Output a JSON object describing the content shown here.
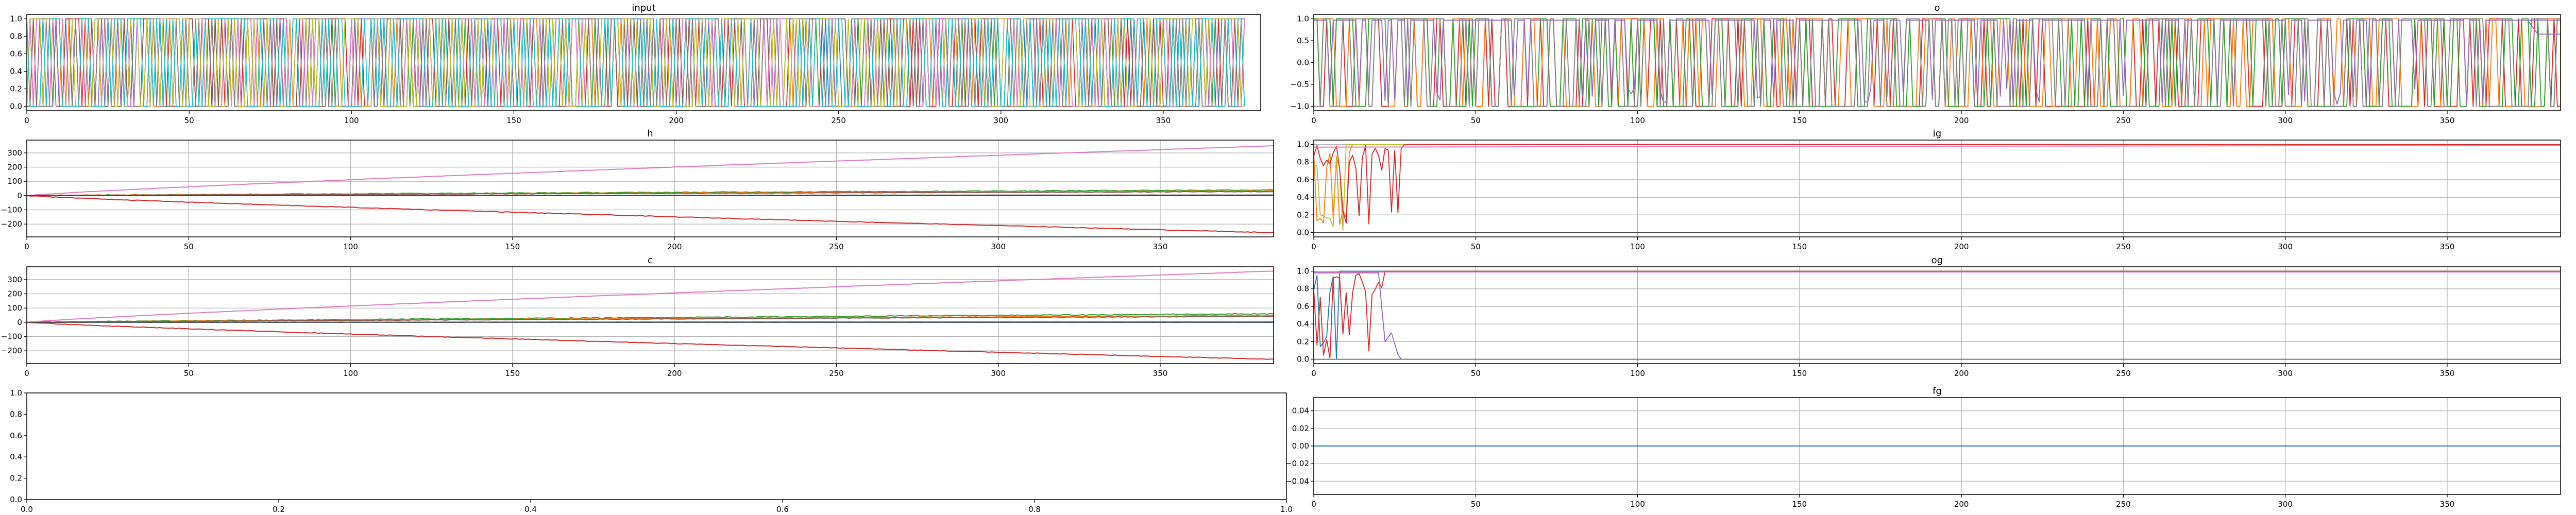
{
  "colors": [
    "#1f77b4",
    "#ff7f0e",
    "#2ca02c",
    "#d62728",
    "#9467bd",
    "#8c564b",
    "#e377c2",
    "#7f7f7f",
    "#bcbd22",
    "#17becf"
  ],
  "chart_data": [
    {
      "id": "input",
      "type": "line",
      "title": "input",
      "xlim": [
        0,
        380
      ],
      "ylim": [
        -0.05,
        1.05
      ],
      "xticks": [
        0,
        50,
        100,
        150,
        200,
        250,
        300,
        350
      ],
      "yticks": [
        0.0,
        0.2,
        0.4,
        0.6,
        0.8,
        1.0
      ],
      "grid": false,
      "series_description": "many overlapping binary (0/1) signals over 380 steps"
    },
    {
      "id": "o",
      "type": "line",
      "title": "o",
      "xlim": [
        0,
        385
      ],
      "ylim": [
        -1.1,
        1.1
      ],
      "xticks": [
        0,
        50,
        100,
        150,
        200,
        250,
        300,
        350
      ],
      "yticks": [
        -1.0,
        -0.5,
        0.0,
        0.5,
        1.0
      ],
      "grid": false
    },
    {
      "id": "h",
      "type": "line",
      "title": "h",
      "xlim": [
        0,
        385
      ],
      "ylim": [
        -290,
        390
      ],
      "xticks": [
        0,
        50,
        100,
        150,
        200,
        250,
        300,
        350
      ],
      "yticks": [
        -200,
        -100,
        0,
        100,
        200,
        300
      ],
      "grid": true,
      "series_end_values": {
        "pink": 350,
        "green": 40,
        "red": -260,
        "flat": 0
      }
    },
    {
      "id": "ig",
      "type": "line",
      "title": "ig",
      "xlim": [
        0,
        385
      ],
      "ylim": [
        -0.05,
        1.05
      ],
      "xticks": [
        0,
        50,
        100,
        150,
        200,
        250,
        300,
        350
      ],
      "yticks": [
        0.0,
        0.2,
        0.4,
        0.6,
        0.8,
        1.0
      ],
      "grid": true
    },
    {
      "id": "c",
      "type": "line",
      "title": "c",
      "xlim": [
        0,
        385
      ],
      "ylim": [
        -290,
        390
      ],
      "xticks": [
        0,
        50,
        100,
        150,
        200,
        250,
        300,
        350
      ],
      "yticks": [
        -200,
        -100,
        0,
        100,
        200,
        300
      ],
      "grid": true,
      "series_end_values": {
        "pink": 360,
        "green": 60,
        "red": -260,
        "flat": 0
      }
    },
    {
      "id": "og",
      "type": "line",
      "title": "og",
      "xlim": [
        0,
        385
      ],
      "ylim": [
        -0.05,
        1.05
      ],
      "xticks": [
        0,
        50,
        100,
        150,
        200,
        250,
        300,
        350
      ],
      "yticks": [
        0.0,
        0.2,
        0.4,
        0.6,
        0.8,
        1.0
      ],
      "grid": true
    },
    {
      "id": "empty",
      "type": "line",
      "title": "",
      "xlim": [
        0,
        1
      ],
      "ylim": [
        0,
        1
      ],
      "xticks": [
        0.0,
        0.2,
        0.4,
        0.6,
        0.8,
        1.0
      ],
      "yticks": [
        0.0,
        0.2,
        0.4,
        0.6,
        0.8,
        1.0
      ],
      "grid": false
    },
    {
      "id": "fg",
      "type": "line",
      "title": "fg",
      "xlim": [
        0,
        385
      ],
      "ylim": [
        -0.055,
        0.055
      ],
      "xticks": [
        0,
        50,
        100,
        150,
        200,
        250,
        300,
        350
      ],
      "yticks": [
        -0.04,
        -0.02,
        0.0,
        0.02,
        0.04
      ],
      "grid": true,
      "series_constant_value": 0.0
    }
  ]
}
